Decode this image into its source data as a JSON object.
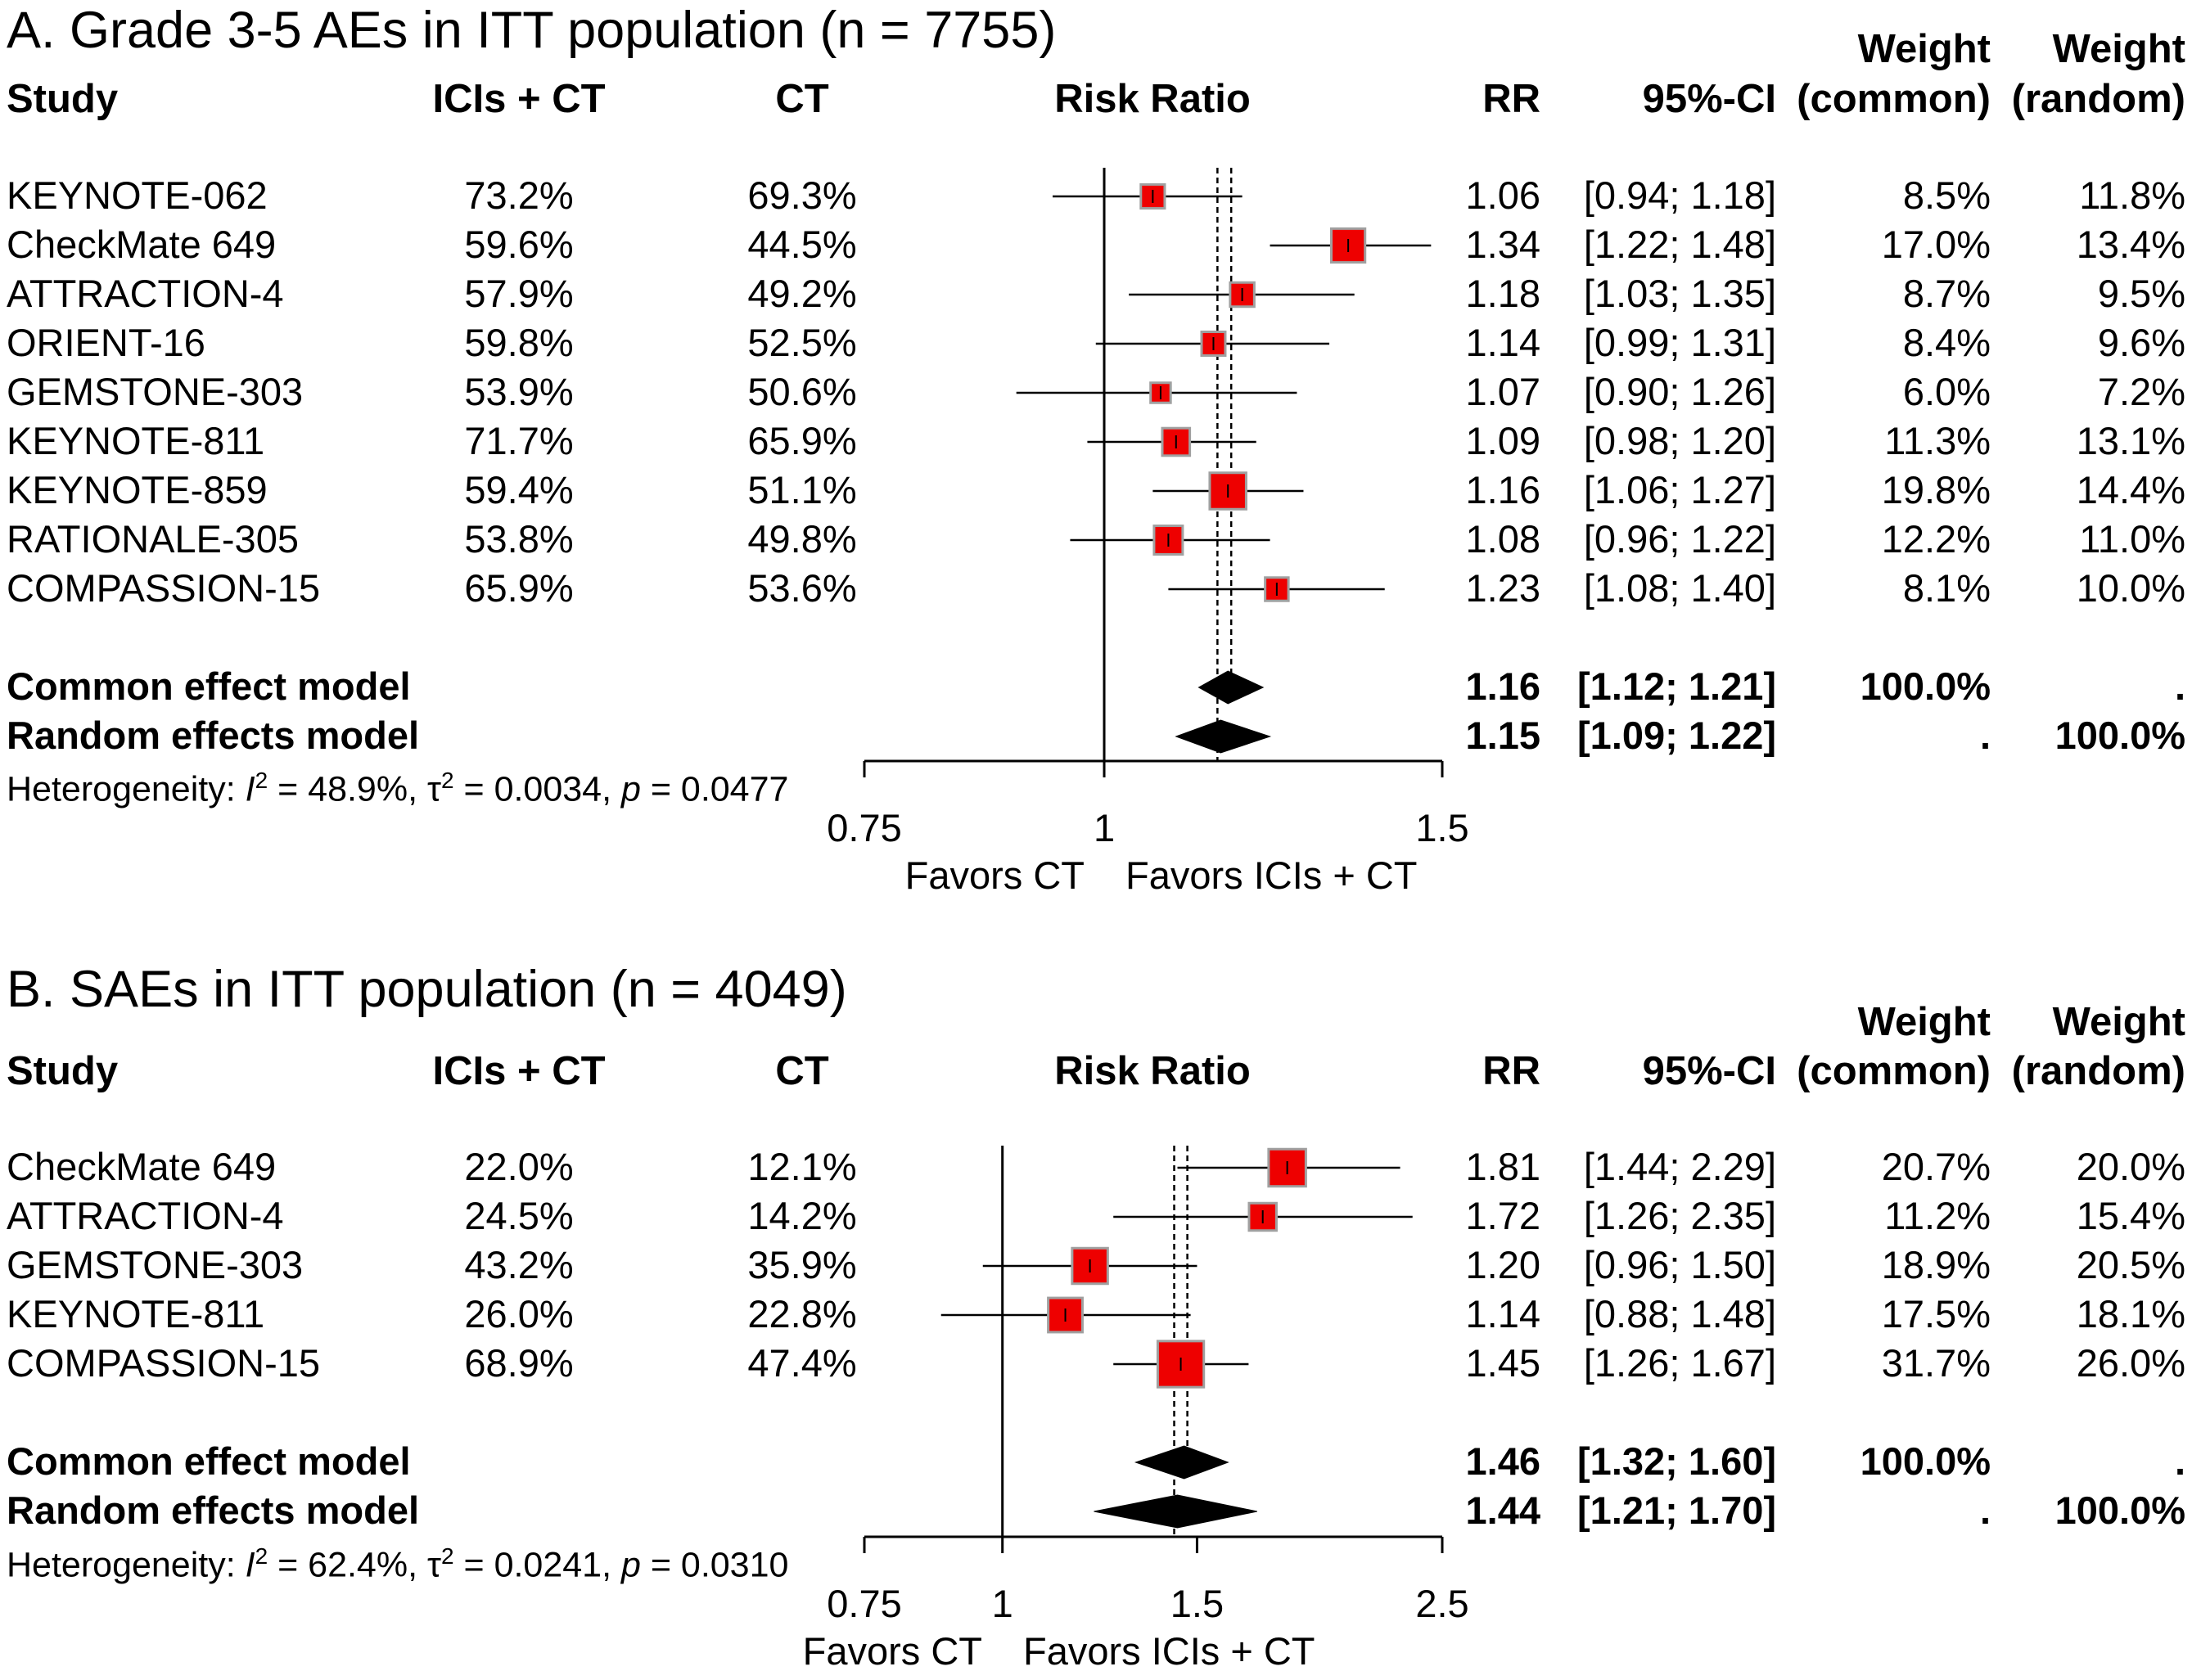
{
  "colors": {
    "box": "#ee0000",
    "box_border": "#a0a0a0",
    "line": "#000000",
    "diamond": "#000000"
  },
  "panels": [
    {
      "title": "A. Grade 3-5 AEs in ITT population (n = 7755)",
      "headers": {
        "study": "Study",
        "arm1": "ICIs + CT",
        "arm2": "CT",
        "plot": "Risk Ratio",
        "rr": "RR",
        "ci": "95%-CI",
        "weight": "Weight",
        "wc": "(common)",
        "wr": "(random)"
      },
      "rows": [
        {
          "study": "KEYNOTE-062",
          "arm1": "73.2%",
          "arm2": "69.3%",
          "rr_text": "1.06",
          "ci_text": "[0.94; 1.18]",
          "wc": "8.5%",
          "wr": "11.8%"
        },
        {
          "study": "CheckMate 649",
          "arm1": "59.6%",
          "arm2": "44.5%",
          "rr_text": "1.34",
          "ci_text": "[1.22; 1.48]",
          "wc": "17.0%",
          "wr": "13.4%"
        },
        {
          "study": "ATTRACTION-4",
          "arm1": "57.9%",
          "arm2": "49.2%",
          "rr_text": "1.18",
          "ci_text": "[1.03; 1.35]",
          "wc": "8.7%",
          "wr": "9.5%"
        },
        {
          "study": "ORIENT-16",
          "arm1": "59.8%",
          "arm2": "52.5%",
          "rr_text": "1.14",
          "ci_text": "[0.99; 1.31]",
          "wc": "8.4%",
          "wr": "9.6%"
        },
        {
          "study": "GEMSTONE-303",
          "arm1": "53.9%",
          "arm2": "50.6%",
          "rr_text": "1.07",
          "ci_text": "[0.90; 1.26]",
          "wc": "6.0%",
          "wr": "7.2%"
        },
        {
          "study": "KEYNOTE-811",
          "arm1": "71.7%",
          "arm2": "65.9%",
          "rr_text": "1.09",
          "ci_text": "[0.98; 1.20]",
          "wc": "11.3%",
          "wr": "13.1%"
        },
        {
          "study": "KEYNOTE-859",
          "arm1": "59.4%",
          "arm2": "51.1%",
          "rr_text": "1.16",
          "ci_text": "[1.06; 1.27]",
          "wc": "19.8%",
          "wr": "14.4%"
        },
        {
          "study": "RATIONALE-305",
          "arm1": "53.8%",
          "arm2": "49.8%",
          "rr_text": "1.08",
          "ci_text": "[0.96; 1.22]",
          "wc": "12.2%",
          "wr": "11.0%"
        },
        {
          "study": "COMPASSION-15",
          "arm1": "65.9%",
          "arm2": "53.6%",
          "rr_text": "1.23",
          "ci_text": "[1.08; 1.40]",
          "wc": "8.1%",
          "wr": "10.0%"
        }
      ],
      "common": {
        "label": "Common effect model",
        "rr_text": "1.16",
        "ci_text": "[1.12; 1.21]",
        "wc": "100.0%",
        "wr": "."
      },
      "random": {
        "label": "Random effects model",
        "rr_text": "1.15",
        "ci_text": "[1.09; 1.22]",
        "wc": ".",
        "wr": "100.0%"
      },
      "heterogeneity": {
        "prefix": "Heterogeneity: ",
        "i": "I",
        "sq": "2",
        "i2_value": " = 48.9%, ",
        "tau": "τ",
        "tau_value": " = 0.0034, ",
        "p": "p",
        "p_value": " = 0.0477"
      },
      "axis": {
        "ticks": [
          "0.75",
          "1",
          "1.5"
        ],
        "favors_left": "Favors CT",
        "favors_right": "Favors ICIs + CT"
      }
    },
    {
      "title": "B. SAEs in ITT population (n = 4049)",
      "headers": {
        "study": "Study",
        "arm1": "ICIs + CT",
        "arm2": "CT",
        "plot": "Risk Ratio",
        "rr": "RR",
        "ci": "95%-CI",
        "weight": "Weight",
        "wc": "(common)",
        "wr": "(random)"
      },
      "rows": [
        {
          "study": "CheckMate 649",
          "arm1": "22.0%",
          "arm2": "12.1%",
          "rr_text": "1.81",
          "ci_text": "[1.44; 2.29]",
          "wc": "20.7%",
          "wr": "20.0%"
        },
        {
          "study": "ATTRACTION-4",
          "arm1": "24.5%",
          "arm2": "14.2%",
          "rr_text": "1.72",
          "ci_text": "[1.26; 2.35]",
          "wc": "11.2%",
          "wr": "15.4%"
        },
        {
          "study": "GEMSTONE-303",
          "arm1": "43.2%",
          "arm2": "35.9%",
          "rr_text": "1.20",
          "ci_text": "[0.96; 1.50]",
          "wc": "18.9%",
          "wr": "20.5%"
        },
        {
          "study": "KEYNOTE-811",
          "arm1": "26.0%",
          "arm2": "22.8%",
          "rr_text": "1.14",
          "ci_text": "[0.88; 1.48]",
          "wc": "17.5%",
          "wr": "18.1%"
        },
        {
          "study": "COMPASSION-15",
          "arm1": "68.9%",
          "arm2": "47.4%",
          "rr_text": "1.45",
          "ci_text": "[1.26; 1.67]",
          "wc": "31.7%",
          "wr": "26.0%"
        }
      ],
      "common": {
        "label": "Common effect model",
        "rr_text": "1.46",
        "ci_text": "[1.32; 1.60]",
        "wc": "100.0%",
        "wr": "."
      },
      "random": {
        "label": "Random effects model",
        "rr_text": "1.44",
        "ci_text": "[1.21; 1.70]",
        "wc": ".",
        "wr": "100.0%"
      },
      "heterogeneity": {
        "prefix": "Heterogeneity: ",
        "i": "I",
        "sq": "2",
        "i2_value": " = 62.4%, ",
        "tau": "τ",
        "tau_value": " = 0.0241, ",
        "p": "p",
        "p_value": " = 0.0310"
      },
      "axis": {
        "ticks": [
          "0.75",
          "1",
          "1.5",
          "2.5"
        ],
        "favors_left": "Favors CT",
        "favors_right": "Favors ICIs + CT"
      }
    }
  ],
  "chart_data": [
    {
      "type": "forest",
      "title": "A. Grade 3-5 AEs in ITT population (n = 7755)",
      "xlabel": "Risk Ratio",
      "xscale": "log",
      "xlim": [
        0.75,
        1.5
      ],
      "xticks": [
        0.75,
        1,
        1.5
      ],
      "categories": [
        "KEYNOTE-062",
        "CheckMate 649",
        "ATTRACTION-4",
        "ORIENT-16",
        "GEMSTONE-303",
        "KEYNOTE-811",
        "KEYNOTE-859",
        "RATIONALE-305",
        "COMPASSION-15"
      ],
      "rr": [
        1.06,
        1.34,
        1.18,
        1.14,
        1.07,
        1.09,
        1.16,
        1.08,
        1.23
      ],
      "lower": [
        0.94,
        1.22,
        1.03,
        0.99,
        0.9,
        0.98,
        1.06,
        0.96,
        1.08
      ],
      "upper": [
        1.18,
        1.48,
        1.35,
        1.31,
        1.26,
        1.2,
        1.27,
        1.22,
        1.4
      ],
      "weight_common": [
        8.5,
        17.0,
        8.7,
        8.4,
        6.0,
        11.3,
        19.8,
        12.2,
        8.1
      ],
      "weight_random": [
        11.8,
        13.4,
        9.5,
        9.6,
        7.2,
        13.1,
        14.4,
        11.0,
        10.0
      ],
      "common_effect": {
        "rr": 1.16,
        "lower": 1.12,
        "upper": 1.21
      },
      "random_effects": {
        "rr": 1.15,
        "lower": 1.09,
        "upper": 1.22
      },
      "null_value": 1
    },
    {
      "type": "forest",
      "title": "B. SAEs in ITT population (n = 4049)",
      "xlabel": "Risk Ratio",
      "xscale": "log",
      "xlim": [
        0.75,
        2.5
      ],
      "xticks": [
        0.75,
        1,
        1.5,
        2.5
      ],
      "categories": [
        "CheckMate 649",
        "ATTRACTION-4",
        "GEMSTONE-303",
        "KEYNOTE-811",
        "COMPASSION-15"
      ],
      "rr": [
        1.81,
        1.72,
        1.2,
        1.14,
        1.45
      ],
      "lower": [
        1.44,
        1.26,
        0.96,
        0.88,
        1.26
      ],
      "upper": [
        2.29,
        2.35,
        1.5,
        1.48,
        1.67
      ],
      "weight_common": [
        20.7,
        11.2,
        18.9,
        17.5,
        31.7
      ],
      "weight_random": [
        20.0,
        15.4,
        20.5,
        18.1,
        26.0
      ],
      "common_effect": {
        "rr": 1.46,
        "lower": 1.32,
        "upper": 1.6
      },
      "random_effects": {
        "rr": 1.44,
        "lower": 1.21,
        "upper": 1.7
      },
      "null_value": 1
    }
  ]
}
